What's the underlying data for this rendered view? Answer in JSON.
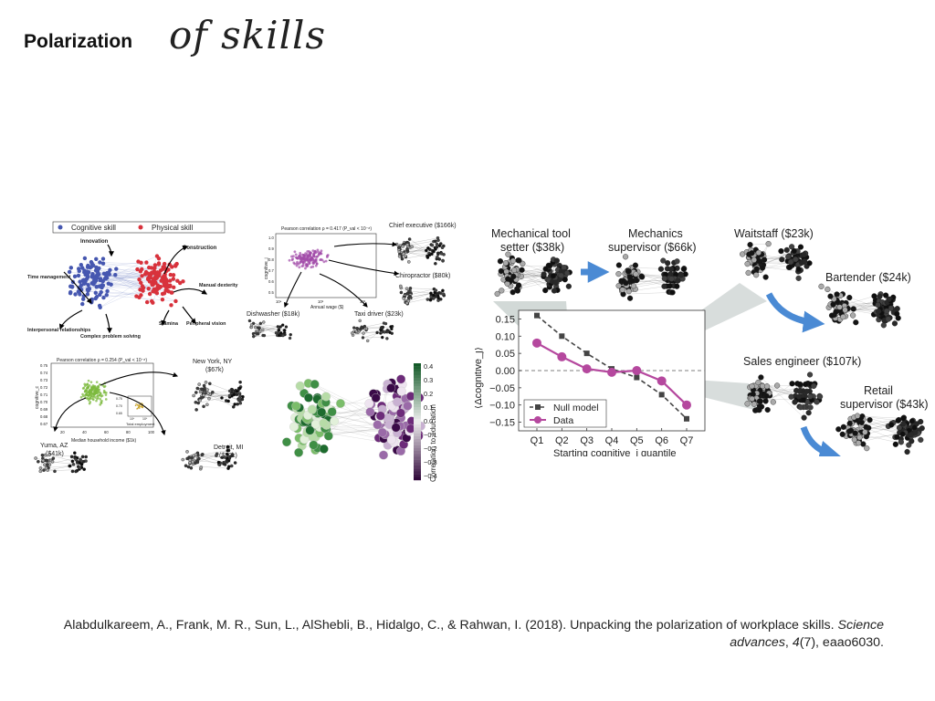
{
  "slide": {
    "title": "Polarization",
    "title_script": "of skills"
  },
  "panel_left": {
    "legend": {
      "cognitive": "Cognitive skill",
      "physical": "Physical skill"
    },
    "skills": [
      "Innovation",
      "Construction",
      "Time management",
      "Manual dexterity",
      "Interpersonal relationships",
      "Complex problem solving",
      "Stamina",
      "Peripheral vision"
    ],
    "wage_plot": {
      "title": "Pearson correlation ρ = 0.417 (P_val < 10⁻⁸)",
      "xlabel": "Annual wage ($)",
      "ylabel": "cognitive_j",
      "yticks": [
        "1.0",
        "0.9",
        "0.8",
        "0.7",
        "0.6",
        "0.5"
      ],
      "xticks": [
        "10⁴",
        "10⁵",
        "10⁶"
      ]
    },
    "wage_jobs": [
      "Chief executive ($166k)",
      "Chiropractor ($80k)",
      "Dishwasher ($18k)",
      "Taxi driver ($23k)"
    ],
    "income_plot": {
      "title": "Pearson correlation ρ = 0.254 (P_val < 10⁻⁸)",
      "xlabel": "Median household income ($1k)",
      "ylabel": "cognitive_c",
      "yticks": [
        "0.75",
        "0.74",
        "0.73",
        "0.72",
        "0.71",
        "0.70",
        "0.69",
        "0.68",
        "0.67"
      ],
      "xticks": [
        "20",
        "40",
        "60",
        "80",
        "100"
      ],
      "inset_xlabel": "Total employment",
      "inset_yticks": [
        "0.75",
        "0.70",
        "0.65"
      ],
      "inset_xticks": [
        "10⁴",
        "10⁶"
      ]
    },
    "cities": [
      "New York, NY ($67k)",
      "Detroit, MI ($52k)",
      "Yuma, AZ ($41k)"
    ],
    "colorbar": {
      "label": "Correlation to education",
      "ticks": [
        "0.4",
        "0.3",
        "0.2",
        "0.1",
        "0.0",
        "−0.1",
        "−0.2",
        "−0.3",
        "−0.4"
      ]
    }
  },
  "panel_right": {
    "jobs": {
      "mech_tool": "Mechanical tool setter ($38k)",
      "mech_sup": "Mechanics supervisor ($66k)",
      "waitstaff": "Waitstaff ($23k)",
      "bartender": "Bartender ($24k)",
      "sales_eng": "Sales engineer ($107k)",
      "retail_sup": "Retail supervisor ($43k)"
    },
    "chart_data": {
      "type": "line",
      "categories": [
        "Q1",
        "Q2",
        "Q3",
        "Q4",
        "Q5",
        "Q6",
        "Q7"
      ],
      "series": [
        {
          "name": "Null model",
          "values": [
            0.16,
            0.1,
            0.05,
            0.005,
            -0.02,
            -0.07,
            -0.14
          ]
        },
        {
          "name": "Data",
          "values": [
            0.08,
            0.04,
            0.005,
            -0.005,
            0.0,
            -0.03,
            -0.1
          ]
        }
      ],
      "xlabel": "Starting cognitive_j quantile",
      "ylabel": "⟨Δcognitive_j⟩",
      "ylim": [
        -0.175,
        0.175
      ],
      "yticks": [
        0.15,
        0.1,
        0.05,
        0.0,
        -0.05,
        -0.1,
        -0.15
      ],
      "ytick_labels": [
        "0.15",
        "0.10",
        "0.05",
        "0.00",
        "−0.05",
        "−0.10",
        "−0.15"
      ],
      "reference_line": 0.0,
      "legend_position": "bottom-left",
      "colors": {
        "null": "#444444",
        "data": "#b5489e",
        "zero": "#999999"
      }
    }
  },
  "citation": {
    "text": "Alabdulkareem, A., Frank, M. R., Sun, L., AlShebli, B., Hidalgo, C., & Rahwan, I. (2018). Unpacking the polarization of workplace skills.",
    "journal": "Science advances",
    "volume_sep": ", ",
    "volume": "4",
    "rest": "(7), eaao6030."
  },
  "colors": {
    "cognitive": "#4657b0",
    "physical": "#d8323c",
    "arrow": "#4a8ad4"
  }
}
